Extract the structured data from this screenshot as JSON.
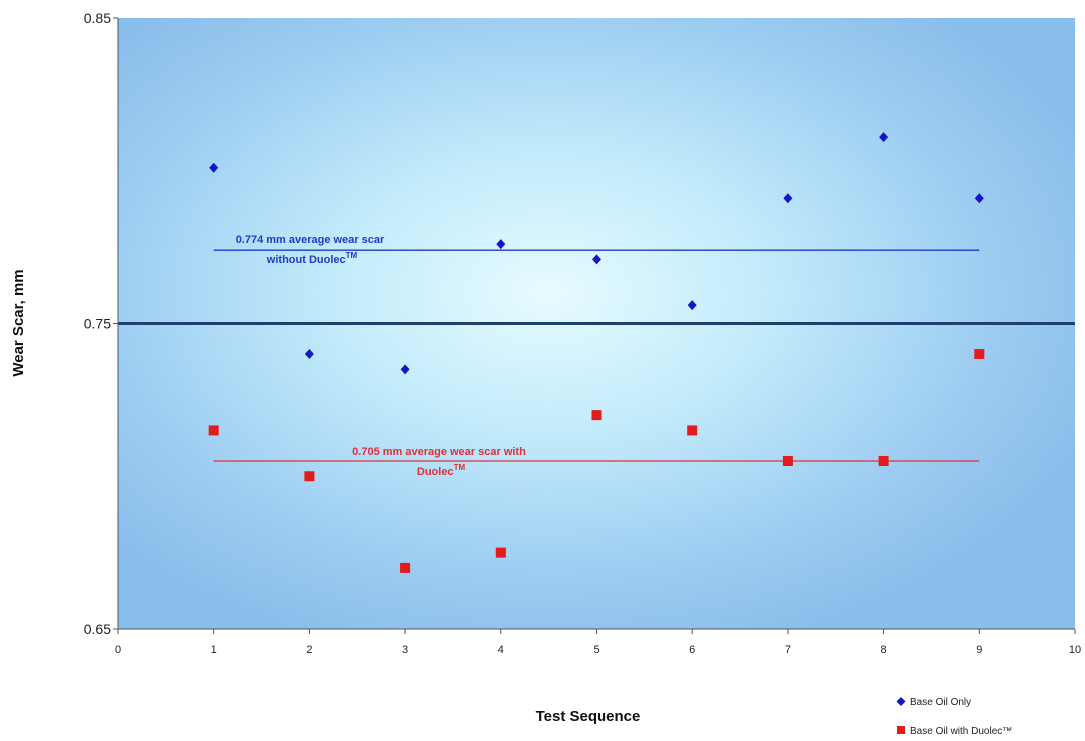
{
  "chart_data": {
    "type": "scatter",
    "xlabel": "Test Sequence",
    "ylabel": "Wear Scar,  mm",
    "xlim": [
      0,
      10
    ],
    "ylim": [
      0.65,
      0.85
    ],
    "x_ticks": [
      "0",
      "1",
      "2",
      "3",
      "4",
      "5",
      "6",
      "7",
      "8",
      "9",
      "10"
    ],
    "y_ticks": [
      "0.65",
      "0.75",
      "0.85"
    ],
    "grid": false,
    "legend_placement": "bottom-right",
    "reference_line": {
      "y": 0.75,
      "color": "#1f3f6f"
    },
    "series": [
      {
        "name": "Base Oil Only",
        "marker": "diamond",
        "color": "#1414c8",
        "x": [
          1,
          2,
          3,
          4,
          5,
          6,
          7,
          8,
          9
        ],
        "y": [
          0.801,
          0.74,
          0.735,
          0.776,
          0.771,
          0.756,
          0.791,
          0.811,
          0.791
        ]
      },
      {
        "name": "Base Oil with Duolec™",
        "marker": "square",
        "color": "#e01c1c",
        "x": [
          1,
          2,
          3,
          4,
          5,
          6,
          7,
          8,
          9
        ],
        "y": [
          0.715,
          0.7,
          0.67,
          0.675,
          0.72,
          0.715,
          0.705,
          0.705,
          0.74
        ]
      }
    ],
    "average_lines": [
      {
        "y": 0.774,
        "x_from": 1,
        "x_to": 9,
        "color": "#1c3ccc",
        "label_line1": "0.774 mm average wear scar",
        "label_line2": "without Duolec",
        "sup": "TM"
      },
      {
        "y": 0.705,
        "x_from": 1,
        "x_to": 9,
        "color": "#e0303a",
        "label_line1": "0.705 mm average wear scar with",
        "label_line2": "Duolec",
        "sup": "TM"
      }
    ]
  }
}
